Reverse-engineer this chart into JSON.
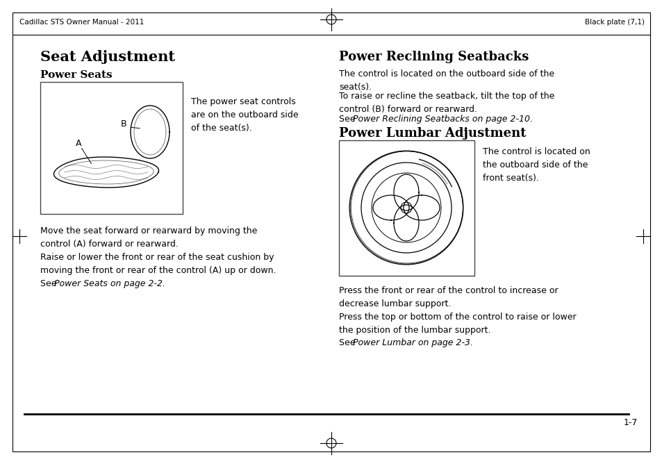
{
  "bg_color": "#ffffff",
  "header_left": "Cadillac STS Owner Manual - 2011",
  "header_right": "Black plate (7,1)",
  "footer_page": "1-7",
  "title_left": "Seat Adjustment",
  "subtitle_left": "Power Seats",
  "subtitle_right": "Power Reclining Seatbacks",
  "subtitle_right2": "Power Lumbar Adjustment",
  "text_seat_side": "The power seat controls\nare on the outboard side\nof the seat(s).",
  "text_lumbar_side": "The control is located on\nthe outboard side of the\nfront seat(s).",
  "text_reclining1": "The control is located on the outboard side of the\nseat(s).",
  "text_reclining2": "To raise or recline the seatback, tilt the top of the\ncontrol (B) forward or rearward.",
  "text_move": "Move the seat forward or rearward by moving the\ncontrol (A) forward or rearward.",
  "text_raise": "Raise or lower the front or rear of the seat cushion by\nmoving the front or rear of the control (A) up or down.",
  "text_lumbar1": "Press the front or rear of the control to increase or\ndecrease lumbar support.",
  "text_lumbar2": "Press the top or bottom of the control to raise or lower\nthe position of the lumbar support."
}
